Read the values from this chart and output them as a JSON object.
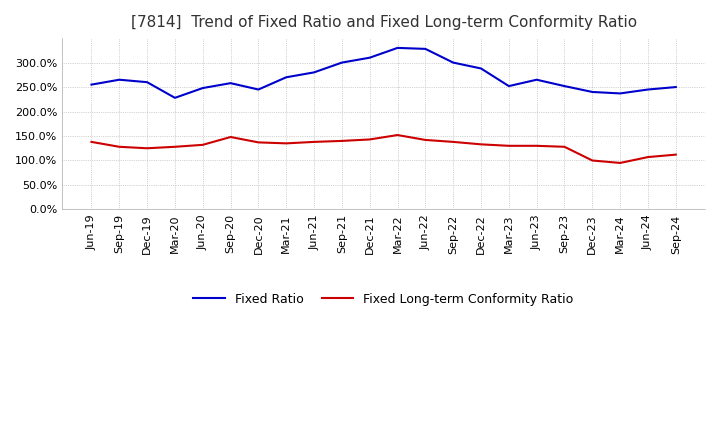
{
  "title": "[7814]  Trend of Fixed Ratio and Fixed Long-term Conformity Ratio",
  "x_labels": [
    "Jun-19",
    "Sep-19",
    "Dec-19",
    "Mar-20",
    "Jun-20",
    "Sep-20",
    "Dec-20",
    "Mar-21",
    "Jun-21",
    "Sep-21",
    "Dec-21",
    "Mar-22",
    "Jun-22",
    "Sep-22",
    "Dec-22",
    "Mar-23",
    "Jun-23",
    "Sep-23",
    "Dec-23",
    "Mar-24",
    "Jun-24",
    "Sep-24"
  ],
  "fixed_ratio": [
    255,
    265,
    260,
    228,
    248,
    258,
    245,
    270,
    280,
    300,
    310,
    330,
    328,
    300,
    288,
    252,
    265,
    252,
    240,
    237,
    245,
    250
  ],
  "fixed_longterm": [
    138,
    128,
    125,
    128,
    132,
    148,
    137,
    135,
    138,
    140,
    143,
    152,
    142,
    138,
    133,
    130,
    130,
    128,
    100,
    95,
    107,
    112
  ],
  "fixed_ratio_color": "#0000CC",
  "fixed_longterm_color": "#CC0000",
  "ylim": [
    0,
    350
  ],
  "yticks": [
    0,
    50,
    100,
    150,
    200,
    250,
    300
  ],
  "background_color": "#FFFFFF",
  "plot_bg_color": "#FFFFFF",
  "grid_color": "#AAAAAA",
  "legend_fixed_ratio": "Fixed Ratio",
  "legend_fixed_longterm": "Fixed Long-term Conformity Ratio",
  "title_fontsize": 11,
  "tick_fontsize": 8,
  "legend_fontsize": 9
}
